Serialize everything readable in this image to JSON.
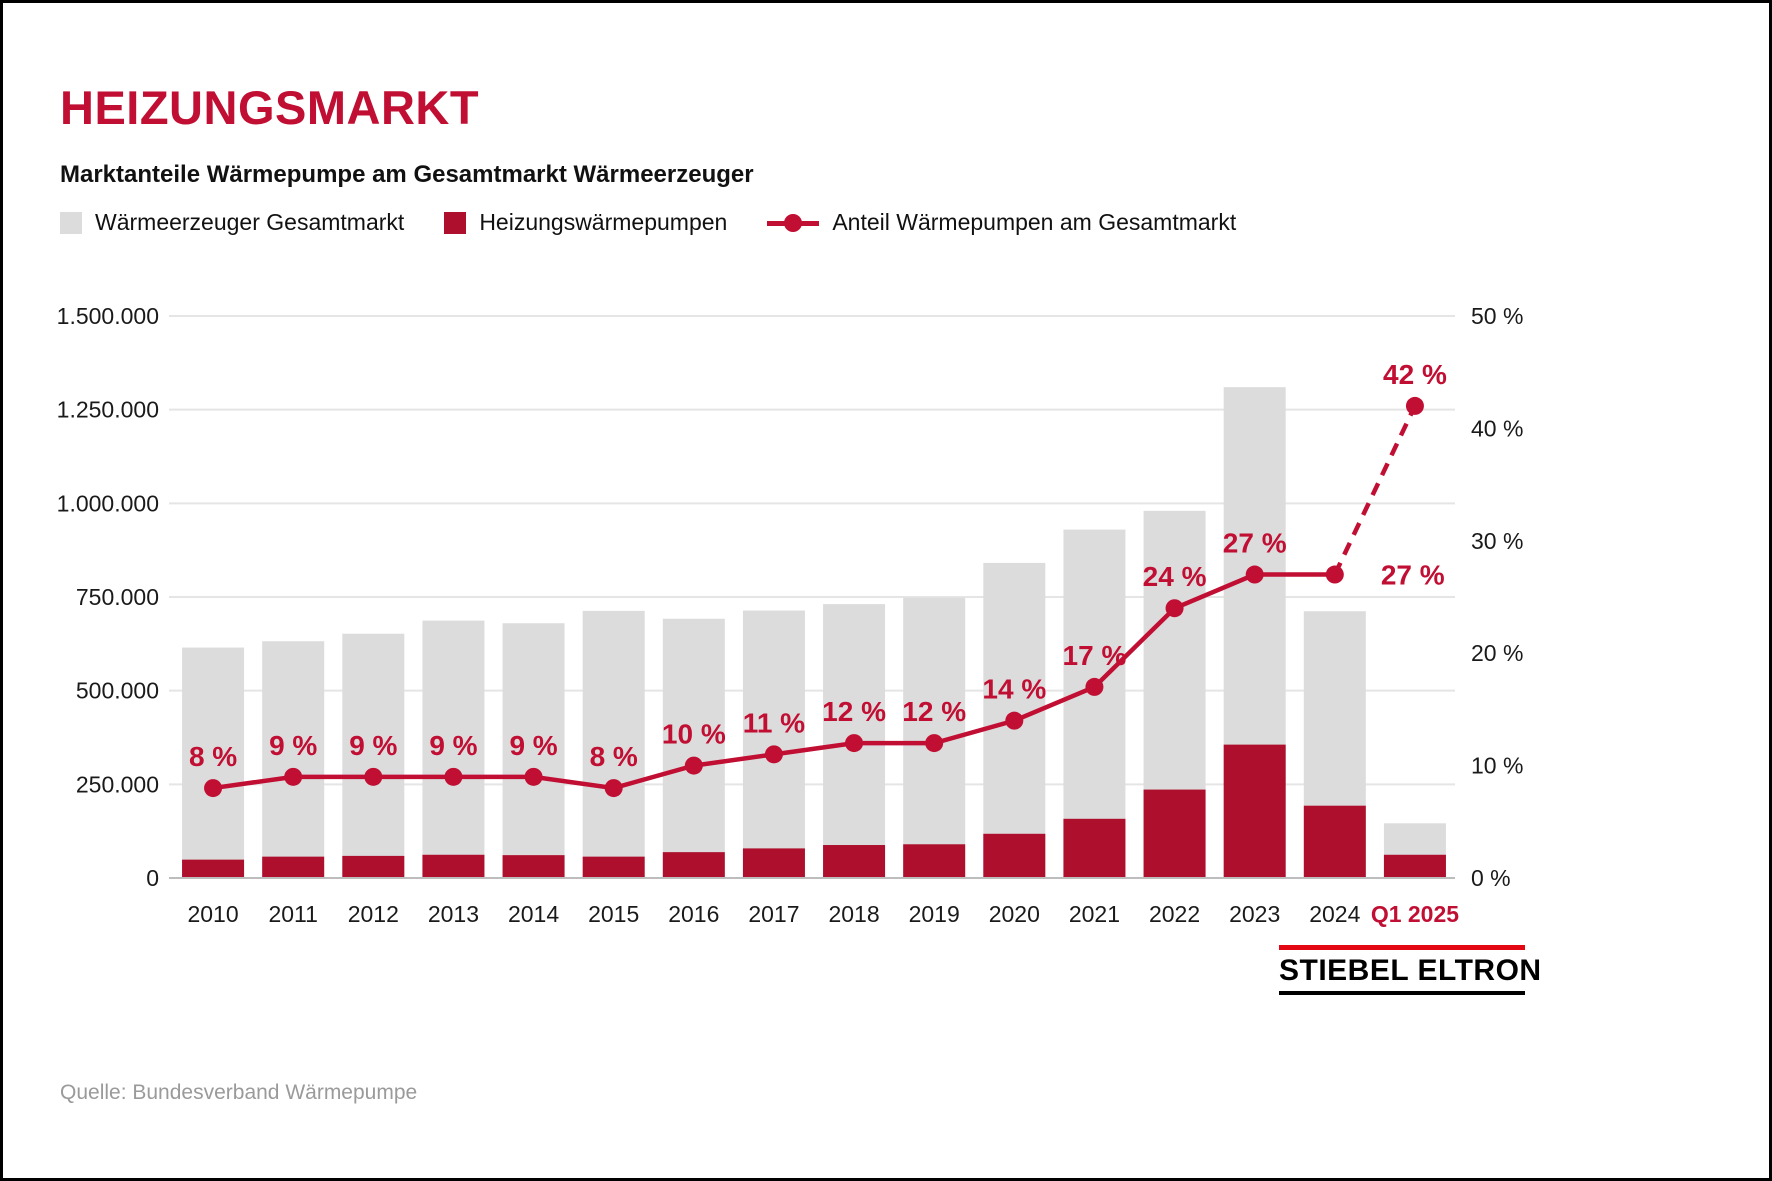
{
  "header": {
    "title": "HEIZUNGSMARKT",
    "subtitle": "Marktanteile Wärmepumpe am Gesamtmarkt Wärmeerzeuger"
  },
  "legend": {
    "items": [
      {
        "label": "Wärmeerzeuger Gesamtmarkt",
        "swatch": "gray-square"
      },
      {
        "label": "Heizungswärmepumpen",
        "swatch": "red-square"
      },
      {
        "label": "Anteil Wärmepumpen am Gesamtmarkt",
        "swatch": "red-line-dot"
      }
    ]
  },
  "footer": {
    "source": "Quelle: Bundesverband Wärmepumpe",
    "logo_text": "STIEBEL ELTRON"
  },
  "colors": {
    "brand_red": "#c10e33",
    "bar_red": "#ad0f2c",
    "bar_gray": "#dcdcdc",
    "grid": "#e5e5e5",
    "baseline": "#bdbdbd",
    "text_dark": "#1a1a1a",
    "source_gray": "#9a9a9a",
    "logo_red": "#e30613"
  },
  "chart_data": {
    "type": "bar",
    "subtype": "bars-with-percentage-line",
    "categories": [
      "2010",
      "2011",
      "2012",
      "2013",
      "2014",
      "2015",
      "2016",
      "2017",
      "2018",
      "2019",
      "2020",
      "2021",
      "2022",
      "2023",
      "2024",
      "Q1 2025"
    ],
    "series": [
      {
        "name": "Wärmeerzeuger Gesamtmarkt",
        "type": "bar",
        "color_key": "bar_gray",
        "values": [
          615000,
          632000,
          652000,
          687000,
          680000,
          713000,
          692000,
          714000,
          731000,
          748000,
          841000,
          930000,
          980000,
          1310000,
          712000,
          146000
        ]
      },
      {
        "name": "Heizungswärmepumpen",
        "type": "bar",
        "color_key": "bar_red",
        "values": [
          49000,
          57000,
          59000,
          62000,
          61000,
          57000,
          69000,
          79000,
          88000,
          90000,
          118000,
          158000,
          236000,
          356000,
          193000,
          62000
        ]
      },
      {
        "name": "Anteil Wärmepumpen am Gesamtmarkt",
        "type": "line",
        "color_key": "brand_red",
        "values": [
          8,
          9,
          9,
          9,
          9,
          8,
          10,
          11,
          12,
          12,
          14,
          17,
          24,
          27,
          27,
          42
        ],
        "labels": [
          "8 %",
          "9 %",
          "9 %",
          "9 %",
          "9 %",
          "8 %",
          "10 %",
          "11 %",
          "12 %",
          "12 %",
          "14 %",
          "17 %",
          "24 %",
          "27 %",
          "27 %",
          "42 %"
        ],
        "dashed_from_index": 14
      }
    ],
    "left_axis": {
      "ticks": [
        "0",
        "250.000",
        "500.000",
        "750.000",
        "1.000.000",
        "1.250.000",
        "1.500.000"
      ],
      "max": 1500000
    },
    "right_axis": {
      "ticks": [
        "0 %",
        "10 %",
        "20 %",
        "30 %",
        "40 %",
        "50 %"
      ],
      "max": 50
    },
    "grid": true,
    "legend_position": "top",
    "highlight_category": "Q1 2025"
  }
}
